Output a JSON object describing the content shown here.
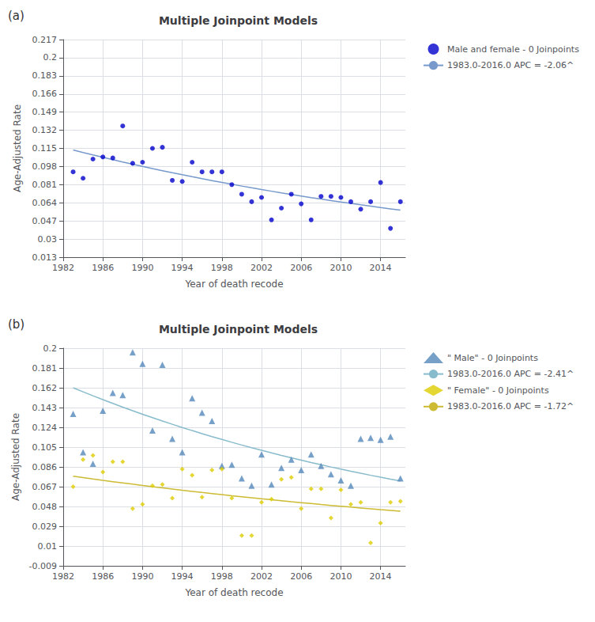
{
  "chart_data": [
    {
      "type": "scatter",
      "title": "Multiple Joinpoint Models",
      "annotations": [
        "(a)"
      ],
      "xlabel": "Year of death recode",
      "ylabel": "Age-Adjusted Rate",
      "x": [
        1983,
        1984,
        1985,
        1986,
        1987,
        1988,
        1989,
        1990,
        1991,
        1992,
        1993,
        1994,
        1995,
        1996,
        1997,
        1998,
        1999,
        2000,
        2001,
        2002,
        2003,
        2004,
        2005,
        2006,
        2007,
        2008,
        2009,
        2010,
        2011,
        2012,
        2013,
        2014,
        2015,
        2016
      ],
      "series": [
        {
          "name": "Male and female - 0 Joinpoints",
          "type": "scatter",
          "marker": "circle",
          "color": "#0000CC",
          "values": [
            0.093,
            0.087,
            0.105,
            0.107,
            0.106,
            0.136,
            0.101,
            0.102,
            0.115,
            0.116,
            0.085,
            0.084,
            0.102,
            0.093,
            0.093,
            0.093,
            0.081,
            0.072,
            0.065,
            0.069,
            0.048,
            0.059,
            0.072,
            0.063,
            0.048,
            0.07,
            0.07,
            0.069,
            0.065,
            0.058,
            0.065,
            0.083,
            0.04,
            0.065
          ]
        },
        {
          "name": "1983.0-2016.0 APC = -2.06^",
          "type": "line",
          "line_style": "solid",
          "color": "#7799CC",
          "values": [
            0.1135,
            0.11116,
            0.10887,
            0.10663,
            0.10443,
            0.10228,
            0.10017,
            0.09811,
            0.09609,
            0.09411,
            0.09217,
            0.09027,
            0.08841,
            0.08659,
            0.08481,
            0.08306,
            0.08135,
            0.07967,
            0.07803,
            0.07643,
            0.07485,
            0.07331,
            0.0718,
            0.07032,
            0.06887,
            0.06745,
            0.06606,
            0.0647,
            0.06337,
            0.06206,
            0.06079,
            0.05953,
            0.05831,
            0.05711
          ]
        }
      ],
      "xlim": [
        1982,
        2016.5
      ],
      "xticks": [
        1982,
        1986,
        1990,
        1994,
        1998,
        2002,
        2006,
        2010,
        2014
      ],
      "ylim": [
        0.013,
        0.217
      ],
      "yticks": [
        0.013,
        0.03,
        0.047,
        0.064,
        0.081,
        0.098,
        0.115,
        0.132,
        0.149,
        0.166,
        0.183,
        0.2,
        0.217
      ],
      "grid": true,
      "legend": "right"
    },
    {
      "type": "scatter",
      "title": "Multiple Joinpoint Models",
      "annotations": [
        "(b)"
      ],
      "xlabel": "Year of death recode",
      "ylabel": "Age-Adjusted Rate",
      "x": [
        1983,
        1984,
        1985,
        1986,
        1987,
        1988,
        1989,
        1990,
        1991,
        1992,
        1993,
        1994,
        1995,
        1996,
        1997,
        1998,
        1999,
        2000,
        2001,
        2002,
        2003,
        2004,
        2005,
        2006,
        2007,
        2008,
        2009,
        2010,
        2011,
        2012,
        2013,
        2014,
        2015,
        2016
      ],
      "series": [
        {
          "name": "\" Male\" - 0 Joinpoints",
          "type": "scatter",
          "marker": "triangle",
          "color": "#5588BB",
          "values": [
            0.137,
            0.1,
            0.089,
            0.14,
            0.157,
            0.155,
            0.196,
            0.185,
            0.121,
            0.184,
            0.113,
            0.1,
            0.152,
            0.138,
            0.13,
            0.087,
            0.088,
            0.075,
            0.068,
            0.098,
            0.069,
            0.085,
            0.093,
            0.083,
            0.098,
            0.087,
            0.079,
            0.073,
            0.068,
            0.113,
            0.114,
            0.112,
            0.115,
            0.075
          ]
        },
        {
          "name": "1983.0-2016.0 APC = -2.41^",
          "type": "line",
          "line_style": "solid",
          "color": "#88BBCC",
          "values": [
            0.162,
            0.1581,
            0.15429,
            0.15057,
            0.14694,
            0.1434,
            0.13994,
            0.13657,
            0.13328,
            0.13007,
            0.12693,
            0.12387,
            0.12089,
            0.11797,
            0.11513,
            0.11236,
            0.10965,
            0.10701,
            0.10443,
            0.10191,
            0.09945,
            0.09706,
            0.09472,
            0.09244,
            0.09021,
            0.08803,
            0.08591,
            0.08384,
            0.08182,
            0.07985,
            0.07792,
            0.07605,
            0.07421,
            0.07243
          ]
        },
        {
          "name": "\" Female\" - 0 Joinpoints",
          "type": "scatter",
          "marker": "diamond",
          "color": "#DDCC00",
          "values": [
            0.067,
            0.093,
            0.097,
            0.081,
            0.091,
            0.091,
            0.046,
            0.05,
            0.068,
            0.069,
            0.056,
            0.084,
            0.078,
            0.057,
            0.083,
            0.084,
            0.056,
            0.02,
            0.02,
            0.052,
            0.055,
            0.074,
            0.076,
            0.046,
            0.065,
            0.065,
            0.037,
            0.064,
            0.05,
            0.052,
            0.013,
            0.032,
            0.052,
            0.053
          ]
        },
        {
          "name": "1983.0-2016.0 APC = -1.72^",
          "type": "line",
          "line_style": "solid",
          "color": "#CCBB33",
          "values": [
            0.077,
            0.07568,
            0.07437,
            0.07309,
            0.07184,
            0.0706,
            0.06939,
            0.06819,
            0.06702,
            0.06587,
            0.06474,
            0.06362,
            0.06253,
            0.06145,
            0.0604,
            0.05936,
            0.05834,
            0.05733,
            0.05635,
            0.05538,
            0.05442,
            0.05349,
            0.05257,
            0.05166,
            0.05078,
            0.0499,
            0.04904,
            0.0482,
            0.04737,
            0.04656,
            0.04576,
            0.04497,
            0.0442,
            0.04343
          ]
        }
      ],
      "xlim": [
        1982,
        2016.5
      ],
      "xticks": [
        1982,
        1986,
        1990,
        1994,
        1998,
        2002,
        2006,
        2010,
        2014
      ],
      "ylim": [
        -0.009,
        0.2
      ],
      "yticks": [
        -0.009,
        0.01,
        0.029,
        0.048,
        0.067,
        0.086,
        0.105,
        0.124,
        0.143,
        0.162,
        0.181,
        0.2
      ],
      "grid": true,
      "legend": "right"
    }
  ]
}
